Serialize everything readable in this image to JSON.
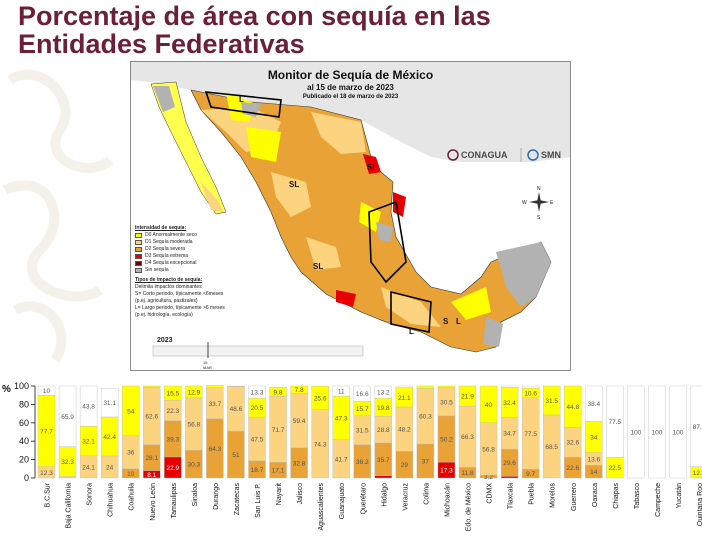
{
  "title": {
    "line1": "Porcentaje de área con sequía en las",
    "line2": "Entidades Federativas"
  },
  "map": {
    "title": "Monitor de Sequía de México",
    "subtitle": "al 15 de marzo de 2023",
    "published": "Publicado el 18 de marzo de 2023",
    "logo_conagua": "CONAGUA",
    "logo_smn": "SMN",
    "compass": {
      "n": "N",
      "s": "S",
      "e": "E",
      "w": "W"
    },
    "region_labels": [
      "L",
      "SL",
      "SL",
      "SL",
      "L",
      "S",
      "L",
      "L"
    ],
    "legend": {
      "intensity_title": "Intensidad de sequía:",
      "items": [
        {
          "label": "D0 Anormalmente seco",
          "color": "#ffff00"
        },
        {
          "label": "D1 Sequía moderada",
          "color": "#fcd37f"
        },
        {
          "label": "D2 Sequía severa",
          "color": "#e8a235"
        },
        {
          "label": "D3 Sequía extrema",
          "color": "#e60000"
        },
        {
          "label": "D4 Sequía excepcional",
          "color": "#730000"
        },
        {
          "label": "Sin sequía",
          "color": "#b2b2b2"
        }
      ],
      "impact_title": "Tipos de impacto de sequía:",
      "impact_items": [
        "Delimita impactos dominantes",
        "S= Corto periodo, típicamente <6meses",
        "(p.ej. agricultura, pastizales)",
        "L= Largo periodo, típicamente >6 meses",
        "(p.ej. hidrología, ecología)"
      ]
    },
    "timeline_year": "2023",
    "timeline_mark": "15",
    "timeline_month": "MAR"
  },
  "chart_data": {
    "type": "bar",
    "stacked": true,
    "ylabel": "%",
    "ylim": [
      0,
      100
    ],
    "yticks": [
      0,
      20,
      40,
      60,
      80,
      100
    ],
    "grid": false,
    "legend": "none",
    "categories": [
      "B.C.Sur",
      "Baja California",
      "Sonora",
      "Chihuahua",
      "Coahuila",
      "Nuevo León",
      "Tamaulipas",
      "Sinaloa",
      "Durango",
      "Zacatecas",
      "San Luis P.",
      "Nayarit",
      "Jalisco",
      "Aguascalientes",
      "Guanajuato",
      "Querétaro",
      "Hidalgo",
      "Veracruz",
      "Colima",
      "Michoacán",
      "Edo. de México",
      "CDMX",
      "Tlaxcala",
      "Puebla",
      "Morelos",
      "Guerrero",
      "Oaxaca",
      "Chiapas",
      "Tabasco",
      "Campeche",
      "Yucatán",
      "Quintana Roo"
    ],
    "colors": {
      "D4": "#730000",
      "D3": "#e60000",
      "D2": "#e8a235",
      "D1": "#fcd37f",
      "D0": "#ffff00",
      "none": "#ffffff"
    },
    "series": [
      {
        "name": "D4",
        "values": [
          0,
          0,
          0,
          0,
          0,
          0,
          0,
          0,
          0,
          0,
          0,
          0,
          0,
          0,
          0,
          0,
          0,
          0,
          0,
          0,
          0,
          0,
          0,
          0,
          0,
          0,
          0,
          0,
          0,
          0,
          0,
          0
        ]
      },
      {
        "name": "D3",
        "values": [
          0,
          0,
          0,
          0,
          0,
          8.1,
          22.9,
          0,
          0,
          0,
          0,
          0,
          0,
          0,
          0,
          0,
          2.5,
          0,
          0,
          17.3,
          0,
          0,
          1.8,
          0,
          0,
          0,
          0,
          0,
          0,
          0,
          0,
          0
        ]
      },
      {
        "name": "D2",
        "values": [
          0,
          0,
          0,
          0,
          10,
          28.1,
          39.3,
          30.3,
          64.3,
          51,
          18.7,
          17.1,
          32.8,
          0,
          0,
          36.2,
          35.7,
          29,
          37,
          50.2,
          11.8,
          3.2,
          29.6,
          9.7,
          0,
          22.6,
          14,
          0,
          0,
          0,
          0,
          0
        ]
      },
      {
        "name": "D1",
        "values": [
          12.3,
          1.8,
          24.1,
          24,
          36,
          62.6,
          22.3,
          56.8,
          33.7,
          48.6,
          47.5,
          71.7,
          59.4,
          74.3,
          41.7,
          31.5,
          28.8,
          48.2,
          60.3,
          30.5,
          66.3,
          56.8,
          34.7,
          77.5,
          68.5,
          32.6,
          13.6,
          0,
          0,
          0,
          0,
          0
        ]
      },
      {
        "name": "D0",
        "values": [
          77.7,
          32.3,
          32.1,
          42.4,
          54,
          1.2,
          15.5,
          12.9,
          2.6,
          0.4,
          20.5,
          9.8,
          7.8,
          25.6,
          47.3,
          15.7,
          19.8,
          21.1,
          2.7,
          2.0,
          21.9,
          40,
          32.4,
          10.6,
          31.5,
          44.8,
          34,
          22.5,
          0,
          0,
          0,
          12.4
        ]
      },
      {
        "name": "none",
        "values": [
          10,
          65.9,
          43.8,
          31.1,
          0,
          0,
          0,
          0,
          0,
          0,
          13.3,
          0,
          0,
          0,
          11,
          16.6,
          13.2,
          1.7,
          0,
          0,
          0,
          0,
          1.5,
          2.2,
          0,
          0,
          38.4,
          77.5,
          100,
          100,
          100,
          87.6
        ]
      }
    ],
    "label_cutoff": 3
  }
}
